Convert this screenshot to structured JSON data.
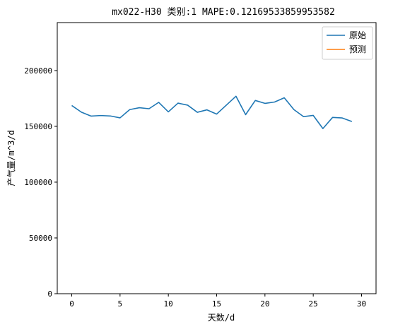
{
  "chart_data": {
    "type": "line",
    "title": "mx022-H30 类别:1 MAPE:0.12169533859953582",
    "xlabel": "天数/d",
    "ylabel": "产气量/m^3/d",
    "xlim": [
      -1.5,
      31.5
    ],
    "ylim": [
      0,
      243000
    ],
    "xticks": [
      0,
      5,
      10,
      15,
      20,
      25,
      30
    ],
    "yticks": [
      0,
      50000,
      100000,
      150000,
      200000
    ],
    "grid": false,
    "legend_position": "top-right",
    "series": [
      {
        "name": "原始",
        "color": "#1f77b4",
        "x": [
          0,
          1,
          2,
          3,
          4,
          5,
          6,
          7,
          8,
          9,
          10,
          11,
          12,
          13,
          14,
          15,
          16,
          17,
          18,
          19,
          20,
          21,
          22,
          23,
          24,
          25,
          26,
          27,
          28,
          29
        ],
        "values": [
          168700,
          162700,
          159200,
          159700,
          159300,
          157600,
          165000,
          166700,
          165800,
          171500,
          163000,
          170800,
          169000,
          162600,
          164800,
          161000,
          169000,
          177000,
          160500,
          173200,
          170600,
          171800,
          175600,
          165000,
          158700,
          159800,
          148000,
          158000,
          157500,
          154300
        ]
      },
      {
        "name": "预测",
        "color": "#ff7f0e",
        "x": [],
        "values": []
      }
    ]
  }
}
